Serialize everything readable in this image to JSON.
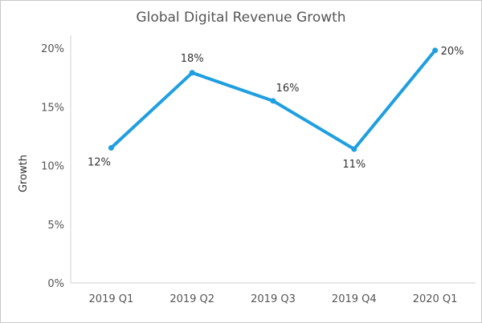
{
  "chart_data": {
    "type": "line",
    "title": "Global Digital Revenue Growth",
    "xlabel": "",
    "ylabel": "Growth",
    "categories": [
      "2019 Q1",
      "2019 Q2",
      "2019 Q3",
      "2019 Q4",
      "2020 Q1"
    ],
    "series": [
      {
        "values": [
          11.5,
          17.9,
          15.5,
          11.4,
          19.8
        ],
        "labels": [
          "12%",
          "18%",
          "16%",
          "11%",
          "20%"
        ]
      }
    ],
    "ylim": [
      0,
      20
    ],
    "yticks": [
      0,
      5,
      10,
      15,
      20
    ],
    "ytick_labels": [
      "0%",
      "5%",
      "10%",
      "15%",
      "20%"
    ],
    "label_positions": [
      "below-left",
      "above",
      "above-right",
      "below",
      "right"
    ],
    "grid": false,
    "line_color": "#1f9fe0",
    "axis_color": "#d0d0d0"
  }
}
